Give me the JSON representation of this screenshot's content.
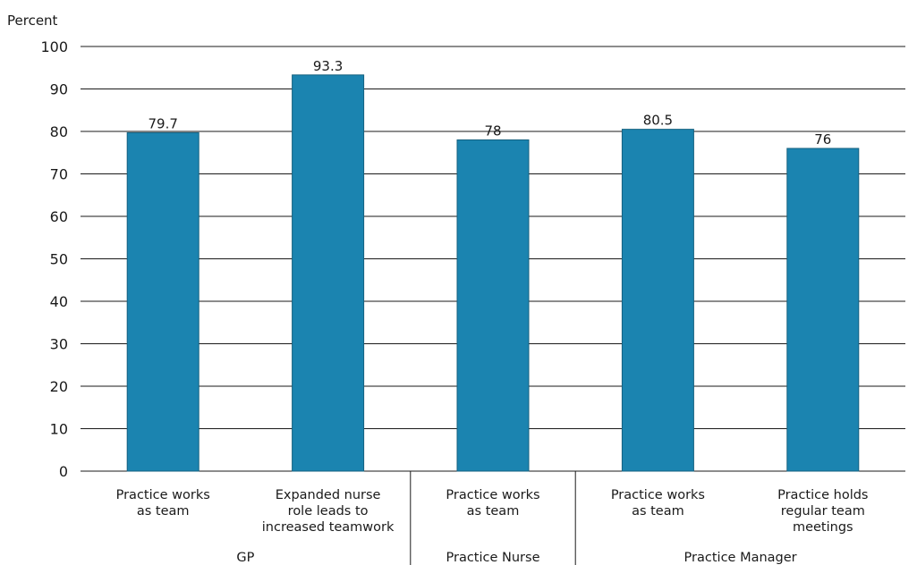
{
  "chart_data": {
    "type": "bar",
    "ylabel": "Percent",
    "ylim": [
      0,
      100
    ],
    "yticks": [
      0,
      10,
      20,
      30,
      40,
      50,
      60,
      70,
      80,
      90,
      100
    ],
    "grid": true,
    "bar_color": "#1b84b0",
    "bar_edge_color": "#14607f",
    "categories": [
      "Practice works as team",
      "Expanded nurse role leads to increased teamwork",
      "Practice works as team",
      "Practice works as team",
      "Practice holds regular team meetings"
    ],
    "category_lines": [
      [
        "Practice works",
        "as team"
      ],
      [
        "Expanded nurse",
        "role leads to",
        "increased teamwork"
      ],
      [
        "Practice works",
        "as team"
      ],
      [
        "Practice works",
        "as team"
      ],
      [
        "Practice holds",
        "regular team",
        "meetings"
      ]
    ],
    "values": [
      79.7,
      93.3,
      78,
      80.5,
      76
    ],
    "value_labels": [
      "79.7",
      "93.3",
      "78",
      "80.5",
      "76"
    ],
    "groups": [
      {
        "name": "GP",
        "categories": [
          0,
          1
        ]
      },
      {
        "name": "Practice Nurse",
        "categories": [
          2
        ]
      },
      {
        "name": "Practice Manager",
        "categories": [
          3,
          4
        ]
      }
    ]
  }
}
